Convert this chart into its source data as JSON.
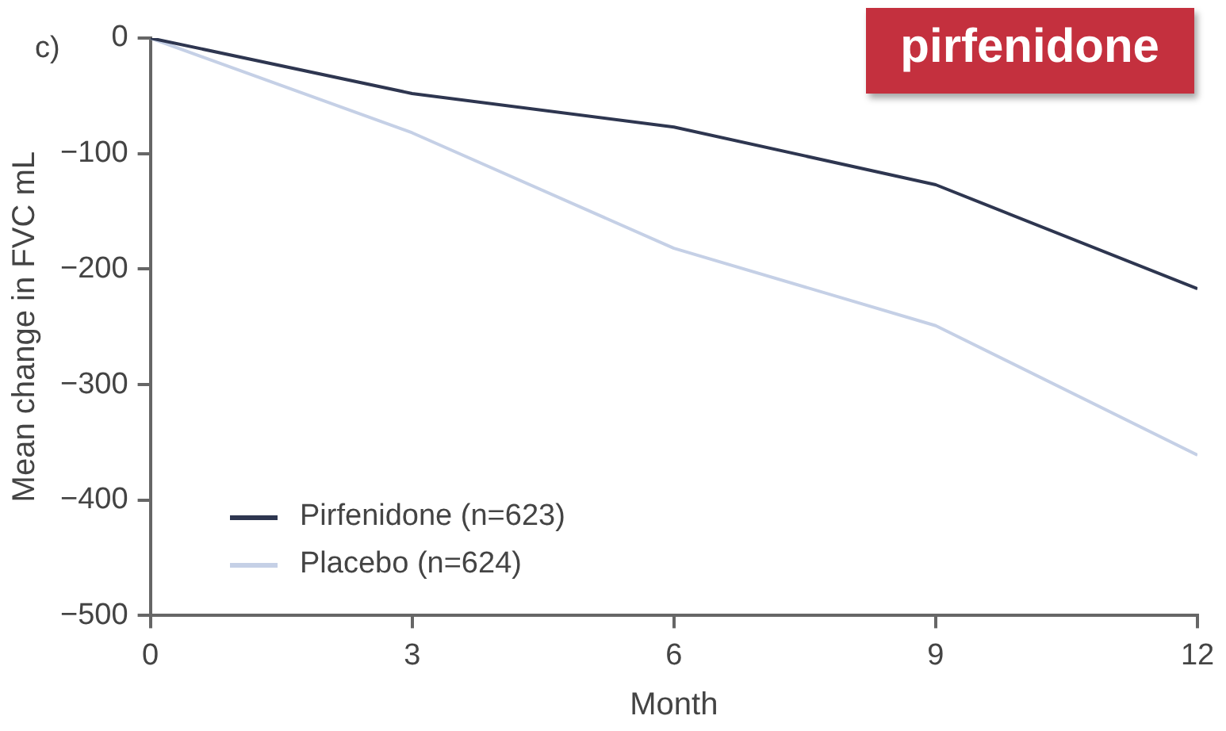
{
  "chart_data": {
    "type": "line",
    "xlabel": "Month",
    "ylabel": "Mean change in FVC mL",
    "annotations": [
      "c)",
      "pirfenidone"
    ],
    "x": [
      0,
      3,
      6,
      9,
      12
    ],
    "series": [
      {
        "name": "Pirfenidone (n=623)",
        "color": "#2e3650",
        "values": [
          0,
          -48,
          -77,
          -127,
          -217
        ]
      },
      {
        "name": "Placebo (n=624)",
        "color": "#c5d0e6",
        "values": [
          0,
          -82,
          -182,
          -249,
          -361
        ]
      }
    ],
    "xlim": [
      0,
      12
    ],
    "xticks": [
      0,
      3,
      6,
      9,
      12
    ],
    "ylim": [
      -500,
      0
    ],
    "yticks": [
      0,
      -100,
      -200,
      -300,
      -400,
      -500
    ],
    "grid": false,
    "legend": "bottom left",
    "marker": "none",
    "line_style": "solid"
  }
}
